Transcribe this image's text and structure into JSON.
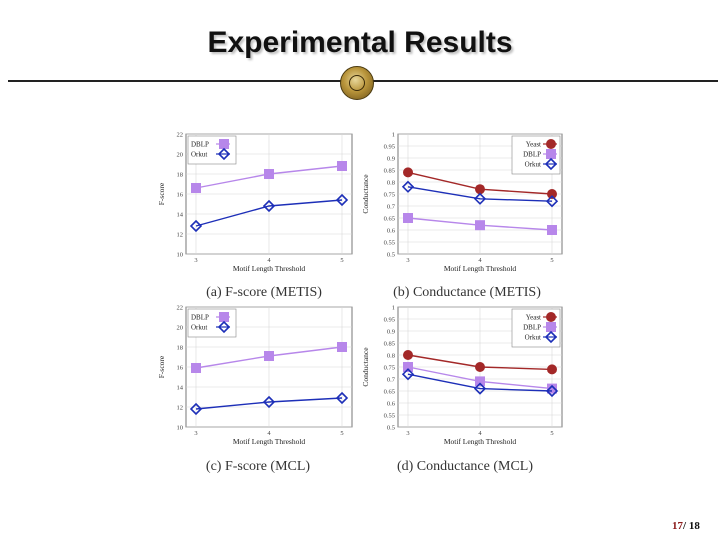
{
  "slide": {
    "title": "Experimental Results",
    "page_current": "17",
    "page_separator": "/ ",
    "page_total": "18"
  },
  "chart_data": [
    {
      "type": "line",
      "caption": "(a) F-score (METIS)",
      "xlabel": "Motif Length Threshold",
      "ylabel": "F-score",
      "x": [
        3,
        4,
        5
      ],
      "ylim": [
        10,
        22
      ],
      "yticks": [
        "10",
        "12",
        "14",
        "16",
        "18",
        "20",
        "22"
      ],
      "grid": true,
      "legend_position": "top-left",
      "series": [
        {
          "name": "DBLP",
          "values": [
            16.6,
            18.0,
            18.8
          ],
          "color": "#b787ea",
          "marker": "square"
        },
        {
          "name": "Orkut",
          "values": [
            12.8,
            14.8,
            15.4
          ],
          "color": "#1d2fb8",
          "marker": "diamond"
        }
      ]
    },
    {
      "type": "line",
      "caption": "(b) Conductance (METIS)",
      "xlabel": "Motif Length Threshold",
      "ylabel": "Conductance",
      "x": [
        3,
        4,
        5
      ],
      "ylim": [
        0.5,
        1
      ],
      "yticks": [
        "0.5",
        "0.55",
        "0.6",
        "0.65",
        "0.7",
        "0.75",
        "0.8",
        "0.85",
        "0.9",
        "0.95",
        "1"
      ],
      "grid": true,
      "legend_position": "top-right",
      "series": [
        {
          "name": "Yeast",
          "values": [
            0.84,
            0.77,
            0.75
          ],
          "color": "#a32828",
          "marker": "circle"
        },
        {
          "name": "DBLP",
          "values": [
            0.65,
            0.62,
            0.6
          ],
          "color": "#b787ea",
          "marker": "square"
        },
        {
          "name": "Orkut",
          "values": [
            0.78,
            0.73,
            0.72
          ],
          "color": "#1d2fb8",
          "marker": "diamond"
        }
      ]
    },
    {
      "type": "line",
      "caption": "(c) F-score (MCL)",
      "xlabel": "Motif Length Threshold",
      "ylabel": "F-score",
      "x": [
        3,
        4,
        5
      ],
      "ylim": [
        10,
        22
      ],
      "yticks": [
        "10",
        "12",
        "14",
        "16",
        "18",
        "20",
        "22"
      ],
      "grid": true,
      "legend_position": "top-left",
      "series": [
        {
          "name": "DBLP",
          "values": [
            15.9,
            17.1,
            18.0
          ],
          "color": "#b787ea",
          "marker": "square"
        },
        {
          "name": "Orkut",
          "values": [
            11.8,
            12.5,
            12.9
          ],
          "color": "#1d2fb8",
          "marker": "diamond"
        }
      ]
    },
    {
      "type": "line",
      "caption": "(d) Conductance (MCL)",
      "xlabel": "Motif Length Threshold",
      "ylabel": "Conductance",
      "x": [
        3,
        4,
        5
      ],
      "ylim": [
        0.5,
        1
      ],
      "yticks": [
        "0.5",
        "0.55",
        "0.6",
        "0.65",
        "0.7",
        "0.75",
        "0.8",
        "0.85",
        "0.9",
        "0.95",
        "1"
      ],
      "grid": true,
      "legend_position": "top-right",
      "series": [
        {
          "name": "Yeast",
          "values": [
            0.8,
            0.75,
            0.74
          ],
          "color": "#a32828",
          "marker": "circle"
        },
        {
          "name": "DBLP",
          "values": [
            0.75,
            0.69,
            0.66
          ],
          "color": "#b787ea",
          "marker": "square"
        },
        {
          "name": "Orkut",
          "values": [
            0.72,
            0.66,
            0.65
          ],
          "color": "#1d2fb8",
          "marker": "diamond"
        }
      ]
    }
  ]
}
